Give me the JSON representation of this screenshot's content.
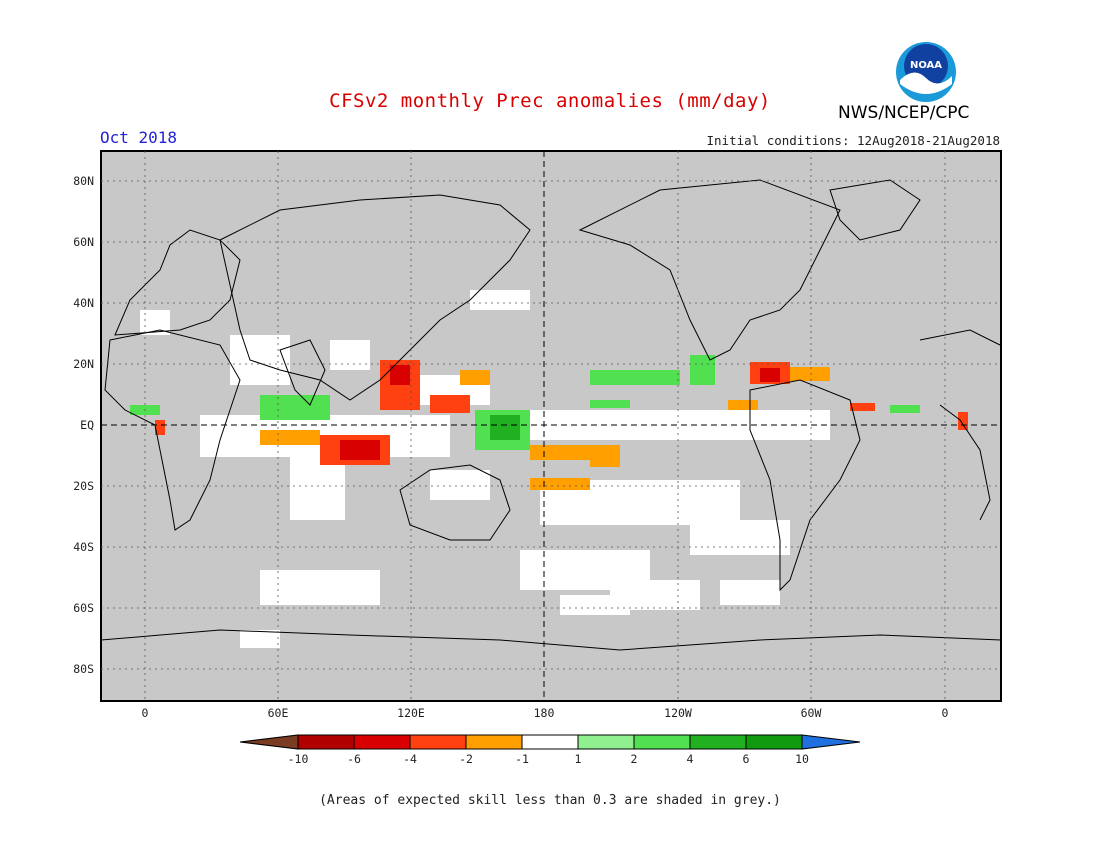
{
  "header": {
    "title": "CFSv2 monthly Prec anomalies (mm/day)",
    "month": "Oct 2018",
    "initial_conditions": "Initial conditions: 12Aug2018-21Aug2018",
    "agency": "NWS/NCEP/CPC",
    "logo_text": "NOAA",
    "logo_colors": {
      "outer": "#1a9ad8",
      "inner": "#1040a0",
      "wave": "#ffffff"
    }
  },
  "map": {
    "background_color": "#c8c8c8",
    "land_outline_color": "#000000",
    "lat_labels": [
      "80N",
      "60N",
      "40N",
      "20N",
      "EQ",
      "20S",
      "40S",
      "60S",
      "80S"
    ],
    "lon_labels": [
      "0",
      "60E",
      "120E",
      "180",
      "120W",
      "60W",
      "0"
    ]
  },
  "legend": {
    "tick_labels": [
      "-10",
      "-6",
      "-4",
      "-2",
      "-1",
      "1",
      "2",
      "4",
      "6",
      "10"
    ],
    "colors": [
      "#7a3d23",
      "#b00000",
      "#d80000",
      "#ff4010",
      "#ffa000",
      "#ffffff",
      "#90f090",
      "#50e050",
      "#20b020",
      "#109a10",
      "#2070e0"
    ]
  },
  "footer": {
    "note": "(Areas of expected skill less than 0.3 are shaded in grey.)"
  }
}
